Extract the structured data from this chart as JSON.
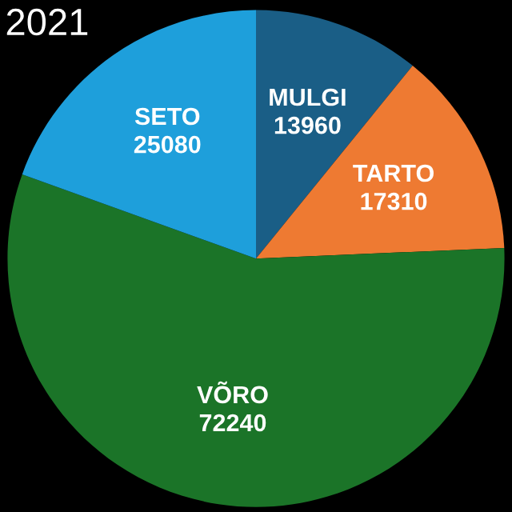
{
  "chart_data": {
    "type": "pie",
    "title": "2021",
    "categories": [
      "MULGI",
      "TARTO",
      "VÕRO",
      "SETO"
    ],
    "values": [
      13960,
      17310,
      72240,
      25080
    ],
    "colors": [
      "#1a5e86",
      "#ee7a32",
      "#1b7428",
      "#1e9fdb"
    ],
    "data_labels": true
  }
}
